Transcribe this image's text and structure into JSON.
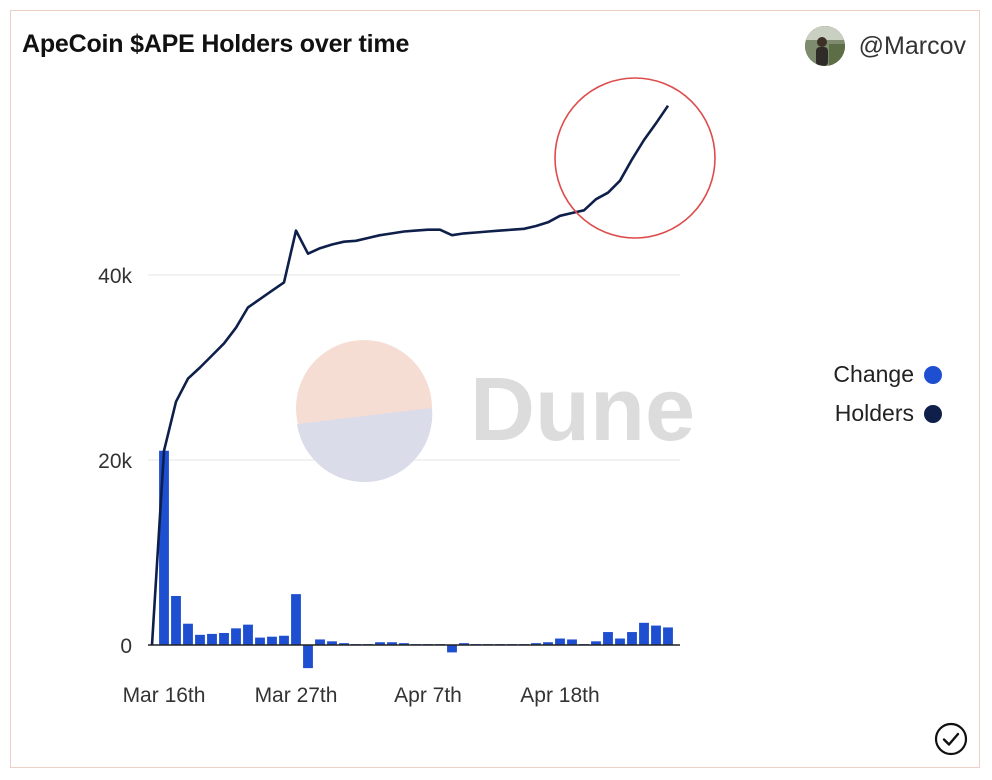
{
  "header": {
    "title": "ApeCoin $APE Holders over time",
    "author": "@Marcov"
  },
  "watermark": {
    "text": "Dune"
  },
  "legend": {
    "items": [
      {
        "label": "Change",
        "color": "#1f4fd1"
      },
      {
        "label": "Holders",
        "color": "#0e1f4a"
      }
    ]
  },
  "colors": {
    "change": "#1f4fd1",
    "holders": "#0e1f4a",
    "annotation_circle": "#dd4b4b",
    "grid": "#e9e9e9"
  },
  "chart_data": {
    "type": "bar",
    "x_ticks": [
      "Mar 16th",
      "Mar 27th",
      "Apr 7th",
      "Apr 18th"
    ],
    "y_ticks": [
      "0",
      "20k",
      "40k"
    ],
    "ylim": [
      -2500,
      60000
    ],
    "grid": true,
    "legend_position": "right",
    "annotation": "red circle around final upward segment of Holders line",
    "x": [
      "Mar 15",
      "Mar 16",
      "Mar 17",
      "Mar 18",
      "Mar 19",
      "Mar 20",
      "Mar 21",
      "Mar 22",
      "Mar 23",
      "Mar 24",
      "Mar 25",
      "Mar 26",
      "Mar 27",
      "Mar 28",
      "Mar 29",
      "Mar 30",
      "Mar 31",
      "Apr 1",
      "Apr 2",
      "Apr 3",
      "Apr 4",
      "Apr 5",
      "Apr 6",
      "Apr 7",
      "Apr 8",
      "Apr 9",
      "Apr 10",
      "Apr 11",
      "Apr 12",
      "Apr 13",
      "Apr 14",
      "Apr 15",
      "Apr 16",
      "Apr 17",
      "Apr 18",
      "Apr 19",
      "Apr 20",
      "Apr 21",
      "Apr 22",
      "Apr 23",
      "Apr 24",
      "Apr 25",
      "Apr 26",
      "Apr 27",
      "Apr 28"
    ],
    "series": [
      {
        "name": "Change",
        "type": "bar",
        "values": [
          0,
          21000,
          5300,
          2300,
          1100,
          1200,
          1300,
          1800,
          2200,
          800,
          900,
          1000,
          5500,
          -2500,
          600,
          400,
          200,
          100,
          100,
          300,
          300,
          200,
          100,
          100,
          100,
          -800,
          200,
          100,
          100,
          100,
          100,
          100,
          200,
          300,
          700,
          600,
          100,
          400,
          1400,
          700,
          1400,
          2400,
          2100,
          1900,
          0
        ]
      },
      {
        "name": "Holders",
        "type": "line",
        "values": [
          0,
          21000,
          26300,
          28800,
          30000,
          31300,
          32600,
          34300,
          36500,
          37400,
          38300,
          39200,
          44800,
          42300,
          42900,
          43300,
          43600,
          43700,
          44000,
          44300,
          44500,
          44700,
          44800,
          44900,
          44900,
          44300,
          44500,
          44600,
          44700,
          44800,
          44900,
          45000,
          45300,
          45700,
          46400,
          46700,
          47000,
          48200,
          48900,
          50200,
          52500,
          54600,
          56400,
          58300,
          58300
        ]
      }
    ]
  }
}
